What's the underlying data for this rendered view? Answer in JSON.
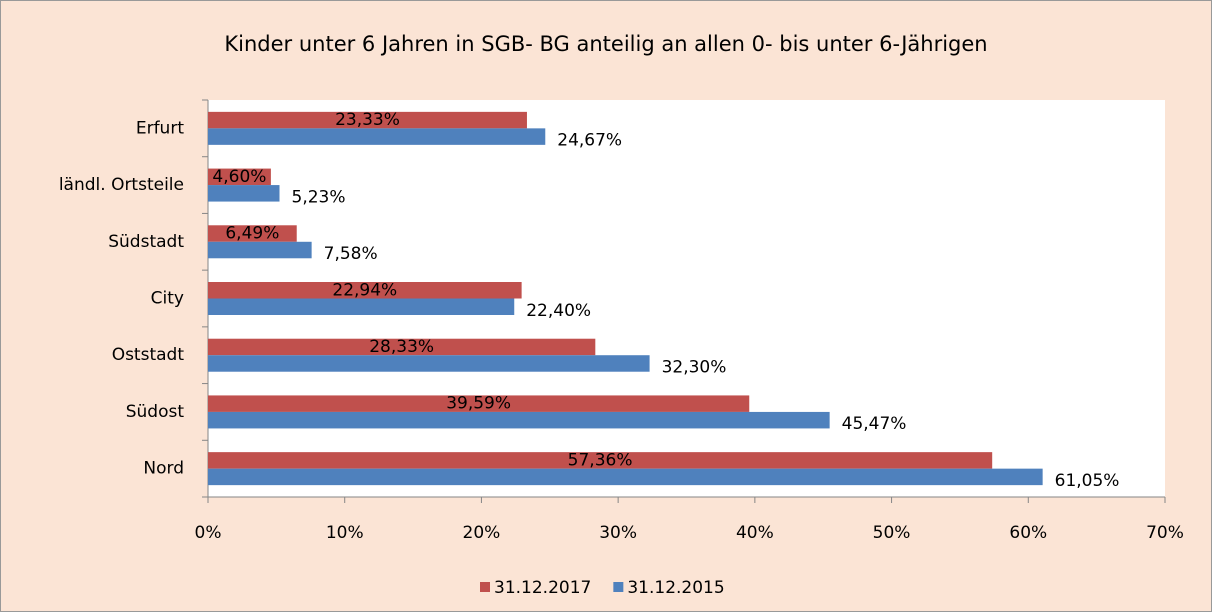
{
  "chart_data": {
    "type": "bar",
    "orientation": "horizontal",
    "title": "Kinder unter 6 Jahren in SGB- BG anteilig an allen 0- bis unter 6-Jährigen",
    "categories": [
      "Erfurt",
      "ländl. Ortsteile",
      "Südstadt",
      "City",
      "Oststadt",
      "Südost",
      "Nord"
    ],
    "series": [
      {
        "name": "31.12.2017",
        "color": "#c0504d",
        "values": [
          23.33,
          4.6,
          6.49,
          22.94,
          28.33,
          39.59,
          57.36
        ],
        "value_labels": [
          "23,33%",
          "4,60%",
          "6,49%",
          "22,94%",
          "28,33%",
          "39,59%",
          "57,36%"
        ]
      },
      {
        "name": "31.12.2015",
        "color": "#4f81bd",
        "values": [
          24.67,
          5.23,
          7.58,
          22.4,
          32.3,
          45.47,
          61.05
        ],
        "value_labels": [
          "24,67%",
          "5,23%",
          "7,58%",
          "22,40%",
          "32,30%",
          "45,47%",
          "61,05%"
        ]
      }
    ],
    "xlim": [
      0,
      70
    ],
    "xticks": [
      {
        "value": 0,
        "label": "0%"
      },
      {
        "value": 10,
        "label": "10%"
      },
      {
        "value": 20,
        "label": "20%"
      },
      {
        "value": 30,
        "label": "30%"
      },
      {
        "value": 40,
        "label": "40%"
      },
      {
        "value": 50,
        "label": "50%"
      },
      {
        "value": 60,
        "label": "60%"
      },
      {
        "value": 70,
        "label": "70%"
      }
    ],
    "legend": "bottom"
  }
}
